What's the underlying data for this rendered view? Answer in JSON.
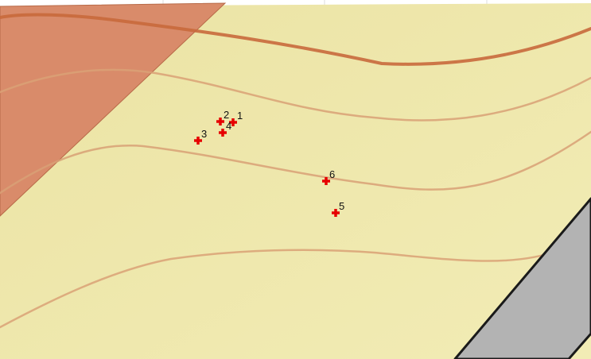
{
  "map": {
    "colors": {
      "parcel_fill": "#f2ecb5",
      "parcel_fill_dark": "#ebe3a4",
      "zone_fill": "#d98b6a",
      "contour_minor": "#d9a176",
      "contour_major": "#c8693c",
      "road_fill": "#b3b3b3",
      "road_edge": "#1a1a1a",
      "marker": "#e60000",
      "label": "#111111"
    },
    "points": [
      {
        "label": "1"
      },
      {
        "label": "2"
      },
      {
        "label": "3"
      },
      {
        "label": "4"
      },
      {
        "label": "5"
      },
      {
        "label": "6"
      }
    ]
  }
}
